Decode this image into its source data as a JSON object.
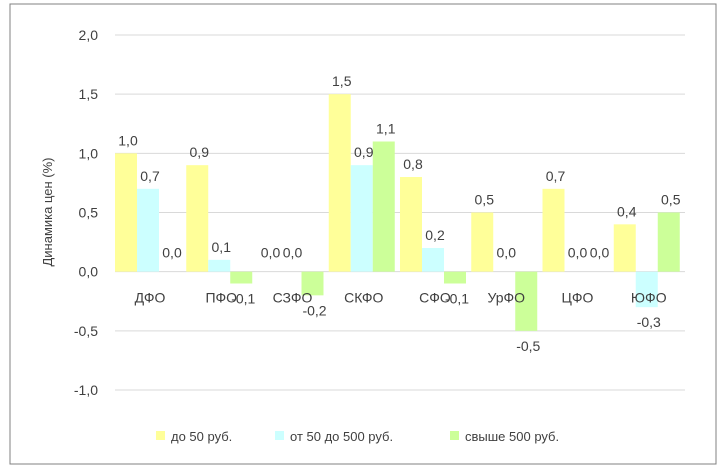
{
  "chart_data": {
    "type": "bar",
    "title": "",
    "xlabel": "",
    "ylabel": "Динамика цен  (%)",
    "ylim": [
      -1.0,
      2.0
    ],
    "ytick_step": 0.5,
    "grid": true,
    "legend_position": "bottom",
    "categories": [
      "ДФО",
      "ПФО",
      "СЗФО",
      "СКФО",
      "СФО",
      "УрФО",
      "ЦФО",
      "ЮФО"
    ],
    "series": [
      {
        "name": "до 50 руб.",
        "color": "#FFFF99",
        "values": [
          1.0,
          0.9,
          0.0,
          1.5,
          0.8,
          0.5,
          0.7,
          0.4
        ]
      },
      {
        "name": "от 50 до 500 руб.",
        "color": "#CCFFFF",
        "values": [
          0.7,
          0.1,
          0.0,
          0.9,
          0.2,
          0.0,
          0.0,
          -0.3
        ]
      },
      {
        "name": "свыше 500 руб.",
        "color": "#CCFF99",
        "values": [
          0.0,
          -0.1,
          -0.2,
          1.1,
          -0.1,
          -0.5,
          0.0,
          0.5
        ]
      }
    ],
    "tick_labels": [
      "2,0",
      "1,5",
      "1,0",
      "0,5",
      "0,0",
      "-0,5",
      "-1,0"
    ]
  }
}
